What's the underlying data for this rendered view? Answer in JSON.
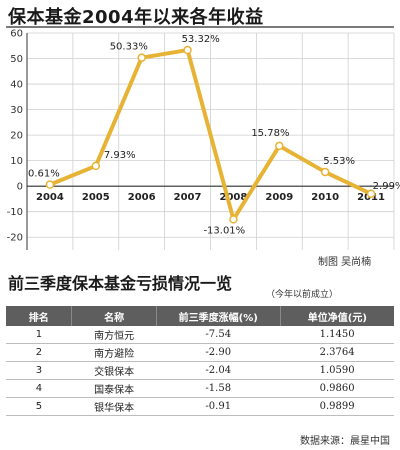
{
  "chart_data": {
    "type": "line",
    "title": "保本基金2004年以来各年收益",
    "categories": [
      "2004",
      "2005",
      "2006",
      "2007",
      "2008",
      "2009",
      "2010",
      "2011"
    ],
    "values": [
      0.61,
      7.93,
      50.33,
      53.32,
      -13.01,
      15.78,
      5.53,
      -2.99
    ],
    "data_labels": [
      "0.61%",
      "7.93%",
      "50.33%",
      "53.32%",
      "-13.01%",
      "15.78%",
      "5.53%",
      "-2.99%"
    ],
    "yticks": [
      "60",
      "50",
      "40",
      "30",
      "20",
      "10",
      "0",
      "-10",
      "-20"
    ],
    "ylim": [
      -25,
      60
    ],
    "grid": true,
    "line_color": "#e7b335",
    "marker_color": "#ffffff",
    "credit": "制图 吴尚楠"
  },
  "table": {
    "title": "前三季度保本基金亏损情况一览",
    "subtitle": "（今年以前成立）",
    "headers": [
      "排名",
      "名称",
      "前三季度涨幅(%)",
      "单位净值(元)"
    ],
    "rows": [
      {
        "rank": "1",
        "name": "南方恒元",
        "change": "-7.54",
        "nav": "1.1450"
      },
      {
        "rank": "2",
        "name": "南方避险",
        "change": "-2.90",
        "nav": "2.3764"
      },
      {
        "rank": "3",
        "name": "交银保本",
        "change": "-2.04",
        "nav": "1.0590"
      },
      {
        "rank": "4",
        "name": "国泰保本",
        "change": "-1.58",
        "nav": "0.9860"
      },
      {
        "rank": "5",
        "name": "银华保本",
        "change": "-0.91",
        "nav": "0.9899"
      }
    ],
    "header_color": "#5e5e5e"
  },
  "source": "数据来源：晨星中国"
}
